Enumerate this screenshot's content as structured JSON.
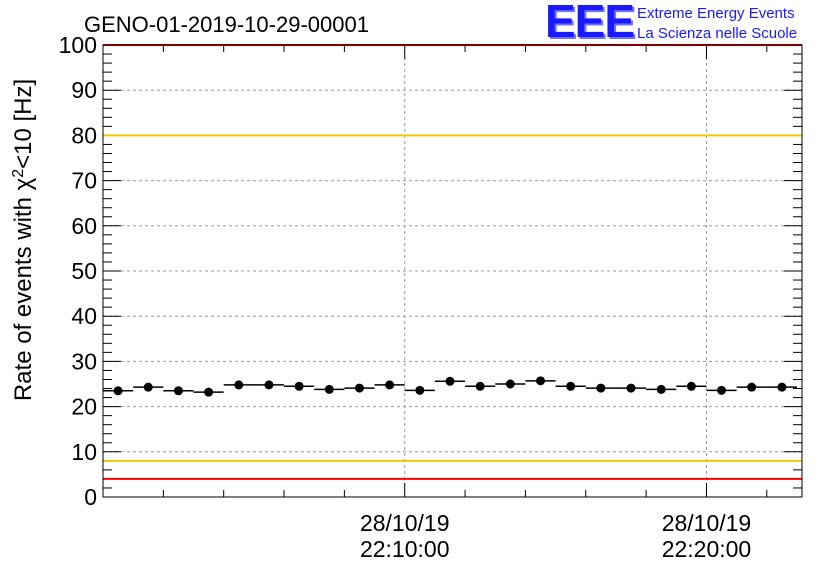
{
  "chart_data": {
    "type": "scatter",
    "title": "GENO-01-2019-10-29-00001",
    "ylabel": "Rate of events with χ²<10 [Hz]",
    "ylim": [
      0,
      100
    ],
    "yticks": [
      0,
      10,
      20,
      30,
      40,
      50,
      60,
      70,
      80,
      90,
      100
    ],
    "xlim": [
      "28/10/19 22:00:00",
      "28/10/19 22:23:10"
    ],
    "xticks": [
      {
        "date": "28/10/19",
        "time": "22:10:00"
      },
      {
        "date": "28/10/19",
        "time": "22:20:00"
      }
    ],
    "grid": true,
    "reference_lines": [
      {
        "y": 100,
        "color": "#ff0000"
      },
      {
        "y": 80,
        "color": "#f0c800"
      },
      {
        "y": 8,
        "color": "#f0c800"
      },
      {
        "y": 4,
        "color": "#ff0000"
      }
    ],
    "series": [
      {
        "bin_width_s": 60,
        "points": [
          {
            "t": "22:00:30",
            "y": 23.5
          },
          {
            "t": "22:01:30",
            "y": 24.3
          },
          {
            "t": "22:02:30",
            "y": 23.5
          },
          {
            "t": "22:03:30",
            "y": 23.2
          },
          {
            "t": "22:04:30",
            "y": 24.8
          },
          {
            "t": "22:05:30",
            "y": 24.8
          },
          {
            "t": "22:06:30",
            "y": 24.5
          },
          {
            "t": "22:07:30",
            "y": 23.8
          },
          {
            "t": "22:08:30",
            "y": 24.1
          },
          {
            "t": "22:09:30",
            "y": 24.8
          },
          {
            "t": "22:10:30",
            "y": 23.6
          },
          {
            "t": "22:11:30",
            "y": 25.6
          },
          {
            "t": "22:12:30",
            "y": 24.5
          },
          {
            "t": "22:13:30",
            "y": 25.0
          },
          {
            "t": "22:14:30",
            "y": 25.7
          },
          {
            "t": "22:15:30",
            "y": 24.5
          },
          {
            "t": "22:16:30",
            "y": 24.1
          },
          {
            "t": "22:17:30",
            "y": 24.1
          },
          {
            "t": "22:18:30",
            "y": 23.8
          },
          {
            "t": "22:19:30",
            "y": 24.5
          },
          {
            "t": "22:20:30",
            "y": 23.6
          },
          {
            "t": "22:21:30",
            "y": 24.3
          },
          {
            "t": "22:22:30",
            "y": 24.3
          }
        ]
      }
    ],
    "colors": {
      "marker": "#000000",
      "grid": "#9a9a9a",
      "frame": "#000000"
    }
  },
  "logo": {
    "mark": "EEE",
    "line1": "Extreme Energy Events",
    "line2": "La Scienza nelle Scuole"
  }
}
